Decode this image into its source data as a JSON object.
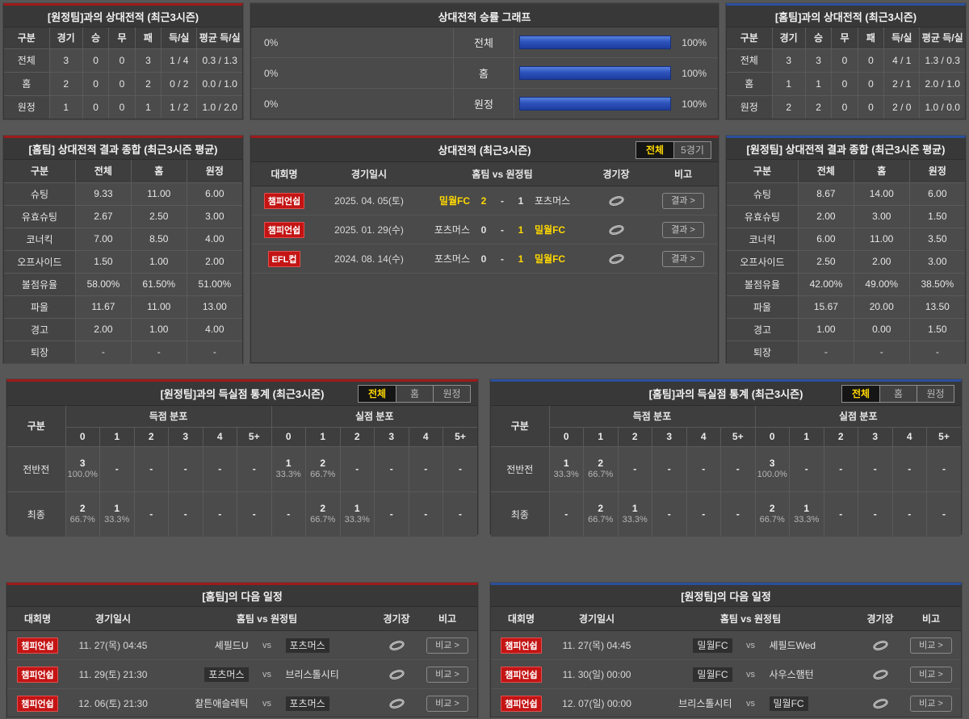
{
  "colors": {
    "accent_red": "#9e1b1b",
    "accent_blue": "#2b4f9c",
    "highlight_yellow": "#ffd800",
    "badge_red": "#c41414",
    "bar_blue": "#2d53bb"
  },
  "vs_away_record": {
    "title": "[원정팀]과의 상대전적 (최근3시즌)",
    "headers": [
      "구분",
      "경기",
      "승",
      "무",
      "패",
      "득/실",
      "평균 득/실"
    ],
    "rows": [
      [
        "전체",
        "3",
        "0",
        "0",
        "3",
        "1 / 4",
        "0.3 / 1.3"
      ],
      [
        "홈",
        "2",
        "0",
        "0",
        "2",
        "0 / 2",
        "0.0 / 1.0"
      ],
      [
        "원정",
        "1",
        "0",
        "0",
        "1",
        "1 / 2",
        "1.0 / 2.0"
      ]
    ]
  },
  "win_graph": {
    "title": "상대전적 승률 그래프",
    "rows": [
      {
        "left_label": "0%",
        "left_pct": 0,
        "label": "전체",
        "right_pct": 100,
        "right_label": "100%"
      },
      {
        "left_label": "0%",
        "left_pct": 0,
        "label": "홈",
        "right_pct": 100,
        "right_label": "100%"
      },
      {
        "left_label": "0%",
        "left_pct": 0,
        "label": "원정",
        "right_pct": 100,
        "right_label": "100%"
      }
    ]
  },
  "vs_home_record": {
    "title": "[홈팀]과의 상대전적 (최근3시즌)",
    "headers": [
      "구분",
      "경기",
      "승",
      "무",
      "패",
      "득/실",
      "평균 득/실"
    ],
    "rows": [
      [
        "전체",
        "3",
        "3",
        "0",
        "0",
        "4 / 1",
        "1.3 / 0.3"
      ],
      [
        "홈",
        "1",
        "1",
        "0",
        "0",
        "2 / 1",
        "2.0 / 1.0"
      ],
      [
        "원정",
        "2",
        "2",
        "0",
        "0",
        "2 / 0",
        "1.0 / 0.0"
      ]
    ]
  },
  "summary_home": {
    "title": "[홈팀] 상대전적 결과 종합 (최근3시즌 평균)",
    "headers": [
      "구분",
      "전체",
      "홈",
      "원정"
    ],
    "rows": [
      [
        "슈팅",
        "9.33",
        "11.00",
        "6.00"
      ],
      [
        "유효슈팅",
        "2.67",
        "2.50",
        "3.00"
      ],
      [
        "코너킥",
        "7.00",
        "8.50",
        "4.00"
      ],
      [
        "오프사이드",
        "1.50",
        "1.00",
        "2.00"
      ],
      [
        "볼점유율",
        "58.00%",
        "61.50%",
        "51.00%"
      ],
      [
        "파울",
        "11.67",
        "11.00",
        "13.00"
      ],
      [
        "경고",
        "2.00",
        "1.00",
        "4.00"
      ],
      [
        "퇴장",
        "-",
        "-",
        "-"
      ]
    ]
  },
  "summary_away": {
    "title": "[원정팀] 상대전적 결과 종합 (최근3시즌 평균)",
    "headers": [
      "구분",
      "전체",
      "홈",
      "원정"
    ],
    "rows": [
      [
        "슈팅",
        "8.67",
        "14.00",
        "6.00"
      ],
      [
        "유효슈팅",
        "2.00",
        "3.00",
        "1.50"
      ],
      [
        "코너킥",
        "6.00",
        "11.00",
        "3.50"
      ],
      [
        "오프사이드",
        "2.50",
        "2.00",
        "3.00"
      ],
      [
        "볼점유율",
        "42.00%",
        "49.00%",
        "38.50%"
      ],
      [
        "파울",
        "15.67",
        "20.00",
        "13.50"
      ],
      [
        "경고",
        "1.00",
        "0.00",
        "1.50"
      ],
      [
        "퇴장",
        "-",
        "-",
        "-"
      ]
    ]
  },
  "h2h": {
    "title": "상대전적 (최근3시즌)",
    "tabs": [
      "전체",
      "5경기"
    ],
    "headers": [
      "대회명",
      "경기일시",
      "홈팀  vs  원정팀",
      "경기장",
      "비고"
    ],
    "result_label": "결과 >",
    "matches": [
      {
        "league": "챔피언쉽",
        "date": "2025. 04. 05(토)",
        "home": "밀월FC",
        "home_score": "2",
        "dash": "-",
        "away_score": "1",
        "away": "포츠머스"
      },
      {
        "league": "챔피언쉽",
        "date": "2025. 01. 29(수)",
        "home": "포츠머스",
        "home_score": "0",
        "dash": "-",
        "away_score": "1",
        "away": "밀월FC"
      },
      {
        "league": "EFL컵",
        "date": "2024. 08. 14(수)",
        "home": "포츠머스",
        "home_score": "0",
        "dash": "-",
        "away_score": "1",
        "away": "밀월FC"
      }
    ]
  },
  "goal_stats_left": {
    "title": "[원정팀]과의 득실점 통계 (최근3시즌)",
    "tabs": [
      "전체",
      "홈",
      "원정"
    ],
    "corner_label": "구분",
    "group_goals": "득점 분포",
    "group_conceded": "실점 분포",
    "cols": [
      "0",
      "1",
      "2",
      "3",
      "4",
      "5+"
    ],
    "rows": [
      {
        "label": "전반전",
        "cells": [
          {
            "v": "3",
            "p": "100.0%"
          },
          {
            "v": "-"
          },
          {
            "v": "-"
          },
          {
            "v": "-"
          },
          {
            "v": "-"
          },
          {
            "v": "-"
          },
          {
            "v": "1",
            "p": "33.3%"
          },
          {
            "v": "2",
            "p": "66.7%"
          },
          {
            "v": "-"
          },
          {
            "v": "-"
          },
          {
            "v": "-"
          },
          {
            "v": "-"
          }
        ]
      },
      {
        "label": "최종",
        "cells": [
          {
            "v": "2",
            "p": "66.7%"
          },
          {
            "v": "1",
            "p": "33.3%"
          },
          {
            "v": "-"
          },
          {
            "v": "-"
          },
          {
            "v": "-"
          },
          {
            "v": "-"
          },
          {
            "v": "-"
          },
          {
            "v": "2",
            "p": "66.7%"
          },
          {
            "v": "1",
            "p": "33.3%"
          },
          {
            "v": "-"
          },
          {
            "v": "-"
          },
          {
            "v": "-"
          }
        ]
      }
    ]
  },
  "goal_stats_right": {
    "title": "[홈팀]과의 득실점 통계 (최근3시즌)",
    "tabs": [
      "전체",
      "홈",
      "원정"
    ],
    "corner_label": "구분",
    "group_goals": "득점 분포",
    "group_conceded": "실점 분포",
    "cols": [
      "0",
      "1",
      "2",
      "3",
      "4",
      "5+"
    ],
    "rows": [
      {
        "label": "전반전",
        "cells": [
          {
            "v": "1",
            "p": "33.3%"
          },
          {
            "v": "2",
            "p": "66.7%"
          },
          {
            "v": "-"
          },
          {
            "v": "-"
          },
          {
            "v": "-"
          },
          {
            "v": "-"
          },
          {
            "v": "3",
            "p": "100.0%"
          },
          {
            "v": "-"
          },
          {
            "v": "-"
          },
          {
            "v": "-"
          },
          {
            "v": "-"
          },
          {
            "v": "-"
          }
        ]
      },
      {
        "label": "최종",
        "cells": [
          {
            "v": "-"
          },
          {
            "v": "2",
            "p": "66.7%"
          },
          {
            "v": "1",
            "p": "33.3%"
          },
          {
            "v": "-"
          },
          {
            "v": "-"
          },
          {
            "v": "-"
          },
          {
            "v": "2",
            "p": "66.7%"
          },
          {
            "v": "1",
            "p": "33.3%"
          },
          {
            "v": "-"
          },
          {
            "v": "-"
          },
          {
            "v": "-"
          },
          {
            "v": "-"
          }
        ]
      }
    ]
  },
  "schedule_home": {
    "title": "[홈팀]의 다음 일정",
    "headers": [
      "대회명",
      "경기일시",
      "홈팀  vs  원정팀",
      "경기장",
      "비고"
    ],
    "vs_label": "vs",
    "compare_label": "비교 >",
    "rows": [
      {
        "league": "챔피언쉽",
        "date": "11. 27(목) 04:45",
        "home": "셰필드U",
        "away": "포츠머스"
      },
      {
        "league": "챔피언쉽",
        "date": "11. 29(토) 21:30",
        "home": "포츠머스",
        "away": "브리스톨시티"
      },
      {
        "league": "챔피언쉽",
        "date": "12. 06(토) 21:30",
        "home": "찰튼애슬레틱",
        "away": "포츠머스"
      }
    ]
  },
  "schedule_away": {
    "title": "[원정팀]의 다음 일정",
    "headers": [
      "대회명",
      "경기일시",
      "홈팀  vs  원정팀",
      "경기장",
      "비고"
    ],
    "vs_label": "vs",
    "compare_label": "비교 >",
    "rows": [
      {
        "league": "챔피언쉽",
        "date": "11. 27(목) 04:45",
        "home": "밀월FC",
        "away": "셰필드Wed"
      },
      {
        "league": "챔피언쉽",
        "date": "11. 30(일) 00:00",
        "home": "밀월FC",
        "away": "사우스햄턴"
      },
      {
        "league": "챔피언쉽",
        "date": "12. 07(일) 00:00",
        "home": "브리스톨시티",
        "away": "밀월FC"
      }
    ]
  }
}
